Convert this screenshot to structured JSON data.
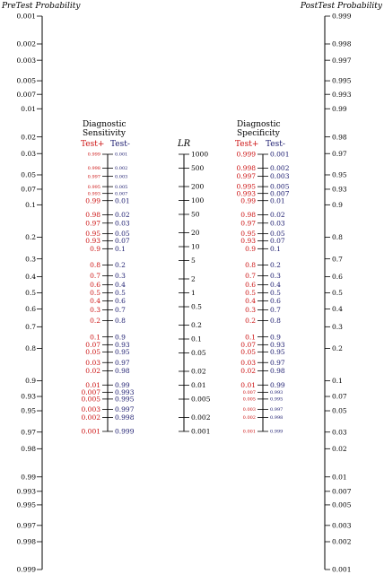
{
  "titles": {
    "pretest": "PreTest Probability",
    "posttest": "PostTest Probability",
    "lr": "LR",
    "sens_line1": "Diagnostic",
    "sens_line2": "Sensitivity",
    "spec_line1": "Diagnostic",
    "spec_line2": "Specificity",
    "test_plus": "Test+",
    "test_minus": "Test-"
  },
  "colors": {
    "red": "#cc1111",
    "blue": "#1a1a6e",
    "black": "#000000"
  },
  "pretest_labels": [
    "0.001",
    "0.002",
    "0.003",
    "0.005",
    "0.007",
    "0.01",
    "0.02",
    "0.03",
    "0.05",
    "0.07",
    "0.1",
    "0.2",
    "0.3",
    "0.4",
    "0.5",
    "0.6",
    "0.7",
    "0.8",
    "0.9",
    "0.93",
    "0.95",
    "0.97",
    "0.98",
    "0.99",
    "0.993",
    "0.995",
    "0.997",
    "0.998",
    "0.999"
  ],
  "posttest_labels": [
    "0.999",
    "0.998",
    "0.997",
    "0.995",
    "0.993",
    "0.99",
    "0.98",
    "0.97",
    "0.95",
    "0.93",
    "0.9",
    "0.8",
    "0.7",
    "0.6",
    "0.5",
    "0.4",
    "0.3",
    "0.2",
    "0.1",
    "0.07",
    "0.05",
    "0.03",
    "0.02",
    "0.01",
    "0.007",
    "0.005",
    "0.003",
    "0.002",
    "0.001"
  ],
  "lr_labels": [
    "1000",
    "500",
    "200",
    "100",
    "50",
    "20",
    "10",
    "5",
    "2",
    "1",
    "0.5",
    "0.2",
    "0.1",
    "0.05",
    "0.02",
    "0.01",
    "0.005",
    "0.002",
    "0.001"
  ],
  "sens_plus": [
    "0.999",
    "0.998",
    "0.997",
    "0.995",
    "0.993",
    "0.99",
    "0.98",
    "0.97",
    "0.95",
    "0.93",
    "0.9",
    "0.8",
    "0.7",
    "0.6",
    "0.5",
    "0.4",
    "0.3",
    "0.2",
    "0.1",
    "0.07",
    "0.05",
    "0.03",
    "0.02",
    "0.01",
    "0.007",
    "0.005",
    "0.003",
    "0.002",
    "0.001"
  ],
  "sens_minus": [
    "0.001",
    "0.002",
    "0.003",
    "0.005",
    "0.007",
    "0.01",
    "0.02",
    "0.03",
    "0.05",
    "0.07",
    "0.1",
    "0.2",
    "0.3",
    "0.4",
    "0.5",
    "0.6",
    "0.7",
    "0.8",
    "0.9",
    "0.93",
    "0.95",
    "0.97",
    "0.98",
    "0.99",
    "0.993",
    "0.995",
    "0.997",
    "0.998",
    "0.999"
  ],
  "spec_plus": [
    "0.999",
    "0.998",
    "0.997",
    "0.995",
    "0.993",
    "0.99",
    "0.98",
    "0.97",
    "0.95",
    "0.93",
    "0.9",
    "0.8",
    "0.7",
    "0.6",
    "0.5",
    "0.4",
    "0.3",
    "0.2",
    "0.1",
    "0.07",
    "0.05",
    "0.03",
    "0.02",
    "0.01",
    "0.007",
    "0.005",
    "0.003",
    "0.002",
    "0.001"
  ],
  "spec_minus": [
    "0.001",
    "0.002",
    "0.003",
    "0.005",
    "0.007",
    "0.01",
    "0.02",
    "0.03",
    "0.05",
    "0.07",
    "0.1",
    "0.2",
    "0.3",
    "0.4",
    "0.5",
    "0.6",
    "0.7",
    "0.8",
    "0.9",
    "0.93",
    "0.95",
    "0.97",
    "0.98",
    "0.99",
    "0.993",
    "0.995",
    "0.997",
    "0.998",
    "0.999"
  ]
}
